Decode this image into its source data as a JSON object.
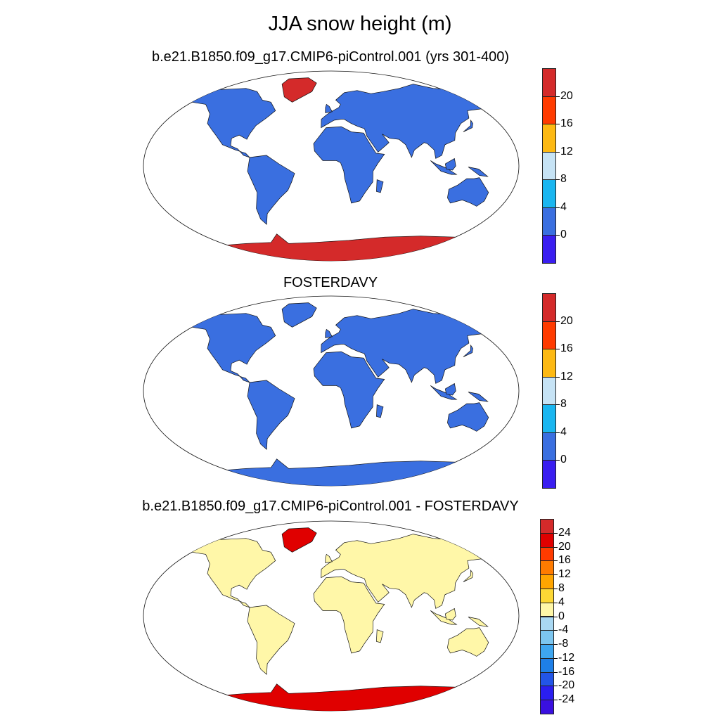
{
  "title": "JJA snow height (m)",
  "colors": {
    "ocean": "#ffffff",
    "coast": "#111111",
    "land_low": "#3a6fe0",
    "antarctic": "#d42a2a",
    "greenland": "#d42a2a",
    "diff_land": "#fff7a8",
    "diff_antarctic": "#e00000",
    "diff_negative": "#a9d8f3"
  },
  "panels": [
    {
      "title": "b.e21.B1850.f09_g17.CMIP6-piControl.001 (yrs 301-400)",
      "land_color": "#3a6fe0",
      "antarctica_color": "#d42a2a",
      "greenland_color": "#d42a2a",
      "colorbar": {
        "ticks": [
          "20",
          "16",
          "12",
          "8",
          "4",
          "0"
        ],
        "colors": [
          "#d42a2a",
          "#ff3b00",
          "#fdb913",
          "#c6e3f5",
          "#1ab6f0",
          "#3a6fe0",
          "#3a1ef0"
        ]
      }
    },
    {
      "title": "FOSTERDAVY",
      "land_color": "#3a6fe0",
      "antarctica_color": "#3a6fe0",
      "greenland_color": "#3a6fe0",
      "colorbar": {
        "ticks": [
          "20",
          "16",
          "12",
          "8",
          "4",
          "0"
        ],
        "colors": [
          "#d42a2a",
          "#ff3b00",
          "#fdb913",
          "#c6e3f5",
          "#1ab6f0",
          "#3a6fe0",
          "#3a1ef0"
        ]
      }
    },
    {
      "title": "b.e21.B1850.f09_g17.CMIP6-piControl.001 - FOSTERDAVY",
      "land_color": "#fff7a8",
      "antarctica_color": "#e00000",
      "greenland_color": "#e00000",
      "colorbar": {
        "ticks": [
          "24",
          "20",
          "16",
          "12",
          "8",
          "4",
          "0",
          "-4",
          "-8",
          "-12",
          "-16",
          "-20",
          "-24"
        ],
        "colors": [
          "#d42a2a",
          "#e00000",
          "#ff3b00",
          "#ff7b00",
          "#ffa500",
          "#fdd835",
          "#fff7a8",
          "#a9d8f3",
          "#7cc6f0",
          "#3ea6f0",
          "#1e7fe8",
          "#2255e8",
          "#2a1ef0",
          "#3a10e0"
        ]
      }
    }
  ]
}
